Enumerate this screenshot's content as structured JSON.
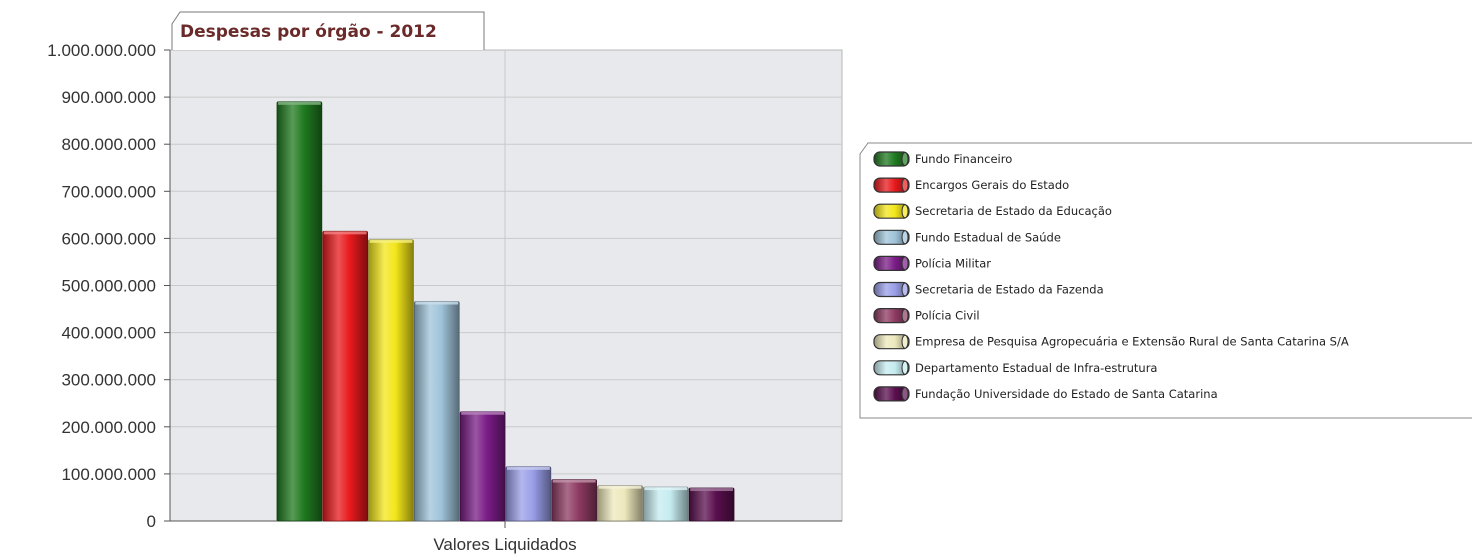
{
  "chart_data": {
    "type": "bar",
    "title": "Despesas por órgão - 2012",
    "xlabel": "Valores Liquidados",
    "ylabel": "",
    "ylim": [
      0,
      1000000000
    ],
    "y_ticks": [
      "0",
      "100.000.000",
      "200.000.000",
      "300.000.000",
      "400.000.000",
      "500.000.000",
      "600.000.000",
      "700.000.000",
      "800.000.000",
      "900.000.000",
      "1.000.000.000"
    ],
    "grid": true,
    "legend_position": "right",
    "categories": [
      "Valores Liquidados"
    ],
    "series": [
      {
        "name": "Fundo Financeiro",
        "color": "#1f7a1f",
        "values": [
          890000000
        ]
      },
      {
        "name": "Encargos Gerais do Estado",
        "color": "#e8191c",
        "values": [
          615000000
        ]
      },
      {
        "name": "Secretaria de Estado da Educação",
        "color": "#f3e619",
        "values": [
          597000000
        ]
      },
      {
        "name": "Fundo Estadual de Saúde",
        "color": "#9fc3d9",
        "values": [
          466000000
        ]
      },
      {
        "name": "Polícia Militar",
        "color": "#7a1c86",
        "values": [
          232000000
        ]
      },
      {
        "name": "Secretaria de Estado da Fazenda",
        "color": "#9a9fe8",
        "values": [
          115000000
        ]
      },
      {
        "name": "Polícia Civil",
        "color": "#8e3a62",
        "values": [
          88000000
        ]
      },
      {
        "name": "Empresa de Pesquisa Agropecuária e Extensão Rural de Santa Catarina S/A",
        "color": "#ede8bc",
        "values": [
          75000000
        ]
      },
      {
        "name": "Departamento Estadual de Infra-estrutura",
        "color": "#c6ecf0",
        "values": [
          72000000
        ]
      },
      {
        "name": "Fundação Universidade do Estado de Santa Catarina",
        "color": "#5a0f4e",
        "values": [
          70000000
        ]
      }
    ]
  }
}
